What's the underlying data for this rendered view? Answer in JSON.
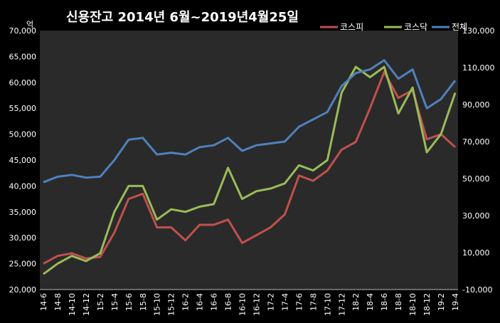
{
  "chart_data": {
    "type": "line",
    "title": "신용잔고 2014년 6월~2019년4월25일",
    "left_unit": "억",
    "ylim_left": [
      20000,
      70000
    ],
    "ylim_right": [
      -10000,
      130000
    ],
    "yticks_left": [
      "20,000",
      "25,000",
      "30,000",
      "35,000",
      "40,000",
      "45,000",
      "50,000",
      "55,000",
      "60,000",
      "65,000",
      "70,000"
    ],
    "yticks_right": [
      "-10,000",
      "10,000",
      "30,000",
      "50,000",
      "70,000",
      "90,000",
      "110,000",
      "130,000"
    ],
    "categories": [
      "14-6",
      "14-8",
      "14-10",
      "14-12",
      "15-2",
      "15-4",
      "15-6",
      "15-8",
      "15-10",
      "15-12",
      "16-2",
      "16-4",
      "16-6",
      "16-8",
      "16-10",
      "16-12",
      "17-2",
      "17-4",
      "17-6",
      "17-8",
      "17-10",
      "17-12",
      "18-2",
      "18-4",
      "18-6",
      "18-8",
      "18-10",
      "18-12",
      "19-2",
      "19-4"
    ],
    "grid": false,
    "legend_position": "top-right",
    "series": [
      {
        "name": "코스피",
        "axis": "left",
        "color": "#c0504d",
        "values": [
          25000,
          26500,
          27000,
          26000,
          26300,
          31000,
          37500,
          38500,
          32000,
          32000,
          29500,
          32500,
          32500,
          33500,
          29000,
          30500,
          32000,
          34500,
          42000,
          41000,
          43000,
          47000,
          48500,
          55000,
          62000,
          57000,
          58500,
          49000,
          50000,
          47500
        ]
      },
      {
        "name": "코스닥",
        "axis": "left",
        "color": "#9bbb59",
        "values": [
          23000,
          25000,
          26500,
          25500,
          27000,
          35000,
          40000,
          40000,
          33500,
          35500,
          35000,
          36000,
          36500,
          43500,
          37500,
          39000,
          39500,
          40500,
          44000,
          43000,
          45000,
          58000,
          63000,
          61000,
          63000,
          54000,
          59000,
          46500,
          50000,
          58000
        ]
      },
      {
        "name": "전체",
        "axis": "right",
        "color": "#4f81bd",
        "values": [
          48000,
          51000,
          52000,
          50500,
          51000,
          60000,
          71000,
          72000,
          63000,
          64000,
          63000,
          67000,
          68000,
          72000,
          65000,
          68000,
          69000,
          70000,
          78000,
          82000,
          86000,
          100000,
          107000,
          109000,
          114000,
          104000,
          109000,
          88000,
          93000,
          103000
        ]
      }
    ]
  }
}
